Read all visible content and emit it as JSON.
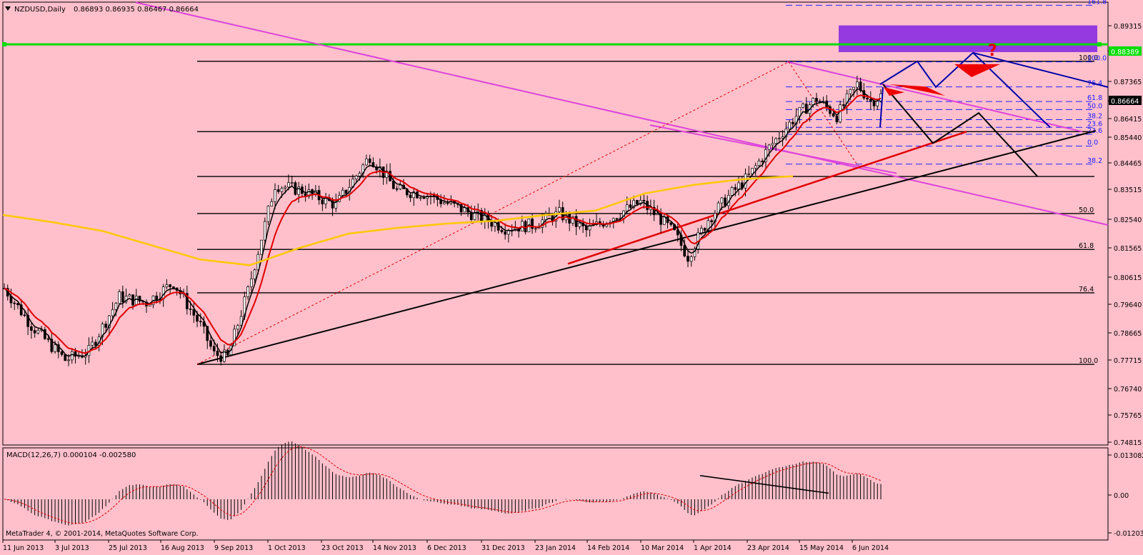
{
  "symbol_header": {
    "symbol": "NZDUSD,Daily",
    "ohlc": "0.86893 0.86935 0.86467 0.86664"
  },
  "macd": {
    "label": "MACD(12,26,7) 0.000104 -0.002580",
    "axis": [
      "0.013082",
      "0.00",
      "-0.012034"
    ],
    "values_range": [
      -0.012034,
      0.013082
    ]
  },
  "copyright": "MetaTrader 4, © 2001-2014, MetaQuotes Software Corp.",
  "price_axis_labels": [
    "0.89315",
    "0.88389",
    "0.87365",
    "0.86664",
    "0.86415",
    "0.85440",
    "0.84465",
    "0.83515",
    "0.82540",
    "0.81565",
    "0.80615",
    "0.79640",
    "0.78665",
    "0.77715",
    "0.76740",
    "0.75765",
    "0.74815"
  ],
  "date_labels": [
    "11 Jun 2013",
    "3 Jul 2013",
    "25 Jul 2013",
    "16 Aug 2013",
    "9 Sep 2013",
    "1 Oct 2013",
    "23 Oct 2013",
    "14 Nov 2013",
    "6 Dec 2013",
    "31 Dec 2013",
    "23 Jan 2014",
    "14 Feb 2014",
    "10 Mar 2014",
    "1 Apr 2014",
    "23 Apr 2014",
    "15 May 2014",
    "6 Jun 2014"
  ],
  "fib_large": [
    "100.0",
    "50.0",
    "61.8",
    "76.4",
    "100.0"
  ],
  "fib_small": [
    "161.8",
    "100.0",
    "76.4",
    "61.8",
    "50.0",
    "38.2",
    "23.6",
    "23.6",
    "0.0",
    "38.2"
  ],
  "annotation": "?",
  "colors": {
    "background": "#ffc0cb",
    "candles": "#000000",
    "ma_fast": "#000000",
    "ma_mid": "#e00000",
    "ma_slow": "#ffc800",
    "channel": "#dd44dd",
    "support": "#00dd00",
    "zone": "#8a2be2",
    "projection": "#0000aa",
    "fib_small": "#2222ff",
    "marker": "#ee0000"
  },
  "chart_data": {
    "type": "candlestick",
    "x_range": [
      "11 Jun 2013",
      "12 Jun 2014"
    ],
    "ylim": [
      0.7444,
      0.8986
    ],
    "ma_slow_levels": [
      0.8245,
      0.822,
      0.819,
      0.814,
      0.809,
      0.807,
      0.813,
      0.818,
      0.82,
      0.8215,
      0.8225,
      0.8245,
      0.826,
      0.832,
      0.835,
      0.837,
      0.838
    ],
    "horizontal_levels": [
      0.8839,
      0.878,
      0.8535,
      0.8379,
      0.825,
      0.8125,
      0.7974,
      0.7725
    ]
  }
}
